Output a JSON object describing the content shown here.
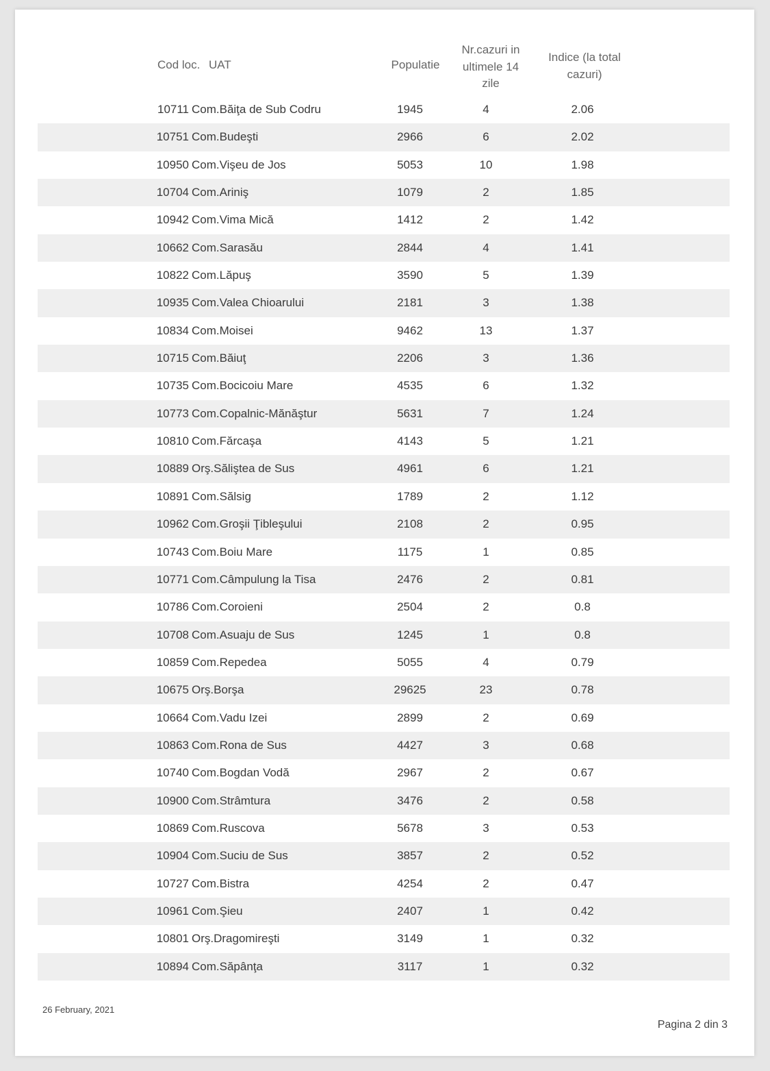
{
  "header": {
    "code": "Cod loc.",
    "name": "UAT",
    "population": "Populatie",
    "cases": [
      "Nr.cazuri in",
      "ultimele 14",
      "zile"
    ],
    "index": [
      "Indice (la total",
      "cazuri)"
    ]
  },
  "rows": [
    [
      "10711",
      "Com.Băiţa de Sub Codru",
      "1945",
      "4",
      "2.06"
    ],
    [
      "10751",
      "Com.Budeşti",
      "2966",
      "6",
      "2.02"
    ],
    [
      "10950",
      "Com.Vişeu de Jos",
      "5053",
      "10",
      "1.98"
    ],
    [
      "10704",
      "Com.Ariniş",
      "1079",
      "2",
      "1.85"
    ],
    [
      "10942",
      "Com.Vima Mică",
      "1412",
      "2",
      "1.42"
    ],
    [
      "10662",
      "Com.Sarasău",
      "2844",
      "4",
      "1.41"
    ],
    [
      "10822",
      "Com.Lăpuş",
      "3590",
      "5",
      "1.39"
    ],
    [
      "10935",
      "Com.Valea Chioarului",
      "2181",
      "3",
      "1.38"
    ],
    [
      "10834",
      "Com.Moisei",
      "9462",
      "13",
      "1.37"
    ],
    [
      "10715",
      "Com.Băiuţ",
      "2206",
      "3",
      "1.36"
    ],
    [
      "10735",
      "Com.Bocicoiu Mare",
      "4535",
      "6",
      "1.32"
    ],
    [
      "10773",
      "Com.Copalnic-Mănăştur",
      "5631",
      "7",
      "1.24"
    ],
    [
      "10810",
      "Com.Fărcaşa",
      "4143",
      "5",
      "1.21"
    ],
    [
      "10889",
      "Orş.Săliştea de Sus",
      "4961",
      "6",
      "1.21"
    ],
    [
      "10891",
      "Com.Sălsig",
      "1789",
      "2",
      "1.12"
    ],
    [
      "10962",
      "Com.Groşii Ţibleşului",
      "2108",
      "2",
      "0.95"
    ],
    [
      "10743",
      "Com.Boiu Mare",
      "1175",
      "1",
      "0.85"
    ],
    [
      "10771",
      "Com.Câmpulung la Tisa",
      "2476",
      "2",
      "0.81"
    ],
    [
      "10786",
      "Com.Coroieni",
      "2504",
      "2",
      "0.8"
    ],
    [
      "10708",
      "Com.Asuaju de Sus",
      "1245",
      "1",
      "0.8"
    ],
    [
      "10859",
      "Com.Repedea",
      "5055",
      "4",
      "0.79"
    ],
    [
      "10675",
      "Orş.Borşa",
      "29625",
      "23",
      "0.78"
    ],
    [
      "10664",
      "Com.Vadu Izei",
      "2899",
      "2",
      "0.69"
    ],
    [
      "10863",
      "Com.Rona de Sus",
      "4427",
      "3",
      "0.68"
    ],
    [
      "10740",
      "Com.Bogdan Vodă",
      "2967",
      "2",
      "0.67"
    ],
    [
      "10900",
      "Com.Strâmtura",
      "3476",
      "2",
      "0.58"
    ],
    [
      "10869",
      "Com.Ruscova",
      "5678",
      "3",
      "0.53"
    ],
    [
      "10904",
      "Com.Suciu de Sus",
      "3857",
      "2",
      "0.52"
    ],
    [
      "10727",
      "Com.Bistra",
      "4254",
      "2",
      "0.47"
    ],
    [
      "10961",
      "Com.Şieu",
      "2407",
      "1",
      "0.42"
    ],
    [
      "10801",
      "Orş.Dragomireşti",
      "3149",
      "1",
      "0.32"
    ],
    [
      "10894",
      "Com.Săpânţa",
      "3117",
      "1",
      "0.32"
    ]
  ],
  "footer": {
    "date": "26 February, 2021",
    "page": "Pagina 2 din 3"
  }
}
